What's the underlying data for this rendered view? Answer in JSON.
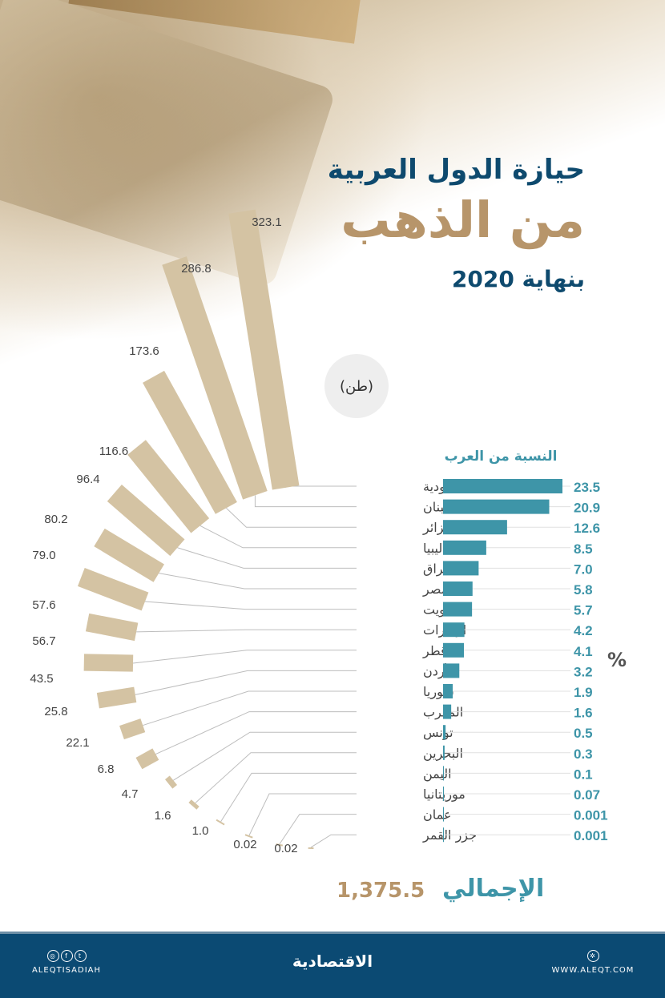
{
  "header": {
    "title_line1": "حيازة الدول العربية",
    "title_line2": "من الذهب",
    "subtitle": "بنهاية 2020"
  },
  "chart_data": [
    {
      "type": "bar",
      "subtype": "radial",
      "unit_label": "(طن)",
      "categories": [
        "السعودية",
        "لبنان",
        "الجزائر",
        "ليبيا",
        "العراق",
        "مصر",
        "الكويت",
        "الإمارات",
        "قطر",
        "الأردن",
        "سوريا",
        "المغرب",
        "تونس",
        "البحرين",
        "اليمن",
        "موريتانيا",
        "عمان",
        "جزر القمر"
      ],
      "values": [
        323.1,
        286.8,
        173.6,
        116.6,
        96.4,
        80.2,
        79.0,
        57.6,
        56.7,
        43.5,
        25.8,
        22.1,
        6.8,
        4.7,
        1.6,
        1.0,
        0.02,
        0.02
      ],
      "value_labels": [
        "323.1",
        "286.8",
        "173.6",
        "116.6",
        "96.4",
        "80.2",
        "79.0",
        "57.6",
        "56.7",
        "43.5",
        "25.8",
        "22.1",
        "6.8",
        "4.7",
        "1.6",
        "1.0",
        "0.02",
        "0.02"
      ],
      "color": "#d4c3a3"
    },
    {
      "type": "bar",
      "orientation": "horizontal",
      "title": "النسبة من العرب",
      "unit_label": "%",
      "categories": [
        "السعودية",
        "لبنان",
        "الجزائر",
        "ليبيا",
        "العراق",
        "مصر",
        "الكويت",
        "الإمارات",
        "قطر",
        "الأردن",
        "سوريا",
        "المغرب",
        "تونس",
        "البحرين",
        "اليمن",
        "موريتانيا",
        "عمان",
        "جزر القمر"
      ],
      "values": [
        23.5,
        20.9,
        12.6,
        8.5,
        7.0,
        5.8,
        5.7,
        4.2,
        4.1,
        3.2,
        1.9,
        1.6,
        0.5,
        0.3,
        0.1,
        0.07,
        0.001,
        0.001
      ],
      "value_labels": [
        "23.5",
        "20.9",
        "12.6",
        "8.5",
        "7.0",
        "5.8",
        "5.7",
        "4.2",
        "4.1",
        "3.2",
        "1.9",
        "1.6",
        "0.5",
        "0.3",
        "0.1",
        "0.07",
        "0.001",
        "0.001"
      ],
      "color": "#3e95a8"
    }
  ],
  "total": {
    "label": "الإجمالي",
    "value": "1,375.5"
  },
  "footer": {
    "handle": "ALEQTISADIAH",
    "logo": "الاقتصادية",
    "website": "WWW.ALEQT.COM",
    "icons": [
      "instagram-icon",
      "facebook-icon",
      "twitter-icon",
      "globe-icon"
    ]
  }
}
